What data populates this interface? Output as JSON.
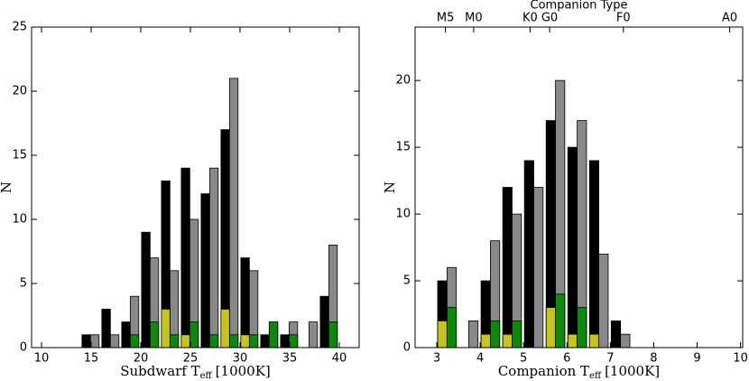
{
  "chart_data": [
    {
      "type": "histogram",
      "xlabel": {
        "main": "Subdwarf T",
        "sub": "eff",
        "unit": "[1000K]"
      },
      "ylabel": "N",
      "bins": [
        14,
        16,
        18,
        20,
        22,
        24,
        26,
        28,
        30,
        32,
        34,
        36,
        38,
        40
      ],
      "series": [
        {
          "color": "#000000",
          "values": [
            1,
            3,
            2,
            9,
            13,
            14,
            12,
            17,
            7,
            1,
            1,
            0,
            4
          ]
        },
        {
          "color": "#888888",
          "values": [
            1,
            1,
            4,
            7,
            6,
            10,
            14,
            21,
            6,
            2,
            2,
            2,
            8
          ]
        },
        {
          "color": "#c8c41e",
          "values": [
            0,
            0,
            0,
            0,
            3,
            1,
            0,
            3,
            1,
            0,
            0,
            0,
            0
          ]
        },
        {
          "color": "#0e870e",
          "values": [
            0,
            0,
            1,
            2,
            1,
            2,
            1,
            1,
            1,
            2,
            1,
            0,
            2
          ]
        }
      ],
      "xlim": [
        9,
        42
      ],
      "xticks": [
        10,
        15,
        20,
        25,
        30,
        35,
        40
      ],
      "ylim": [
        0,
        25
      ],
      "yticks": [
        0,
        5,
        10,
        15,
        20,
        25
      ]
    },
    {
      "type": "histogram",
      "xlabel": {
        "main": "Companion T",
        "sub": "eff",
        "unit": "[1000K]"
      },
      "ylabel": "N",
      "top_axis_label": "Companion Type",
      "top_ticks": [
        {
          "value": 3.2,
          "label": "M5"
        },
        {
          "value": 3.85,
          "label": "M0"
        },
        {
          "value": 5.15,
          "label": "K0"
        },
        {
          "value": 5.6,
          "label": "G0"
        },
        {
          "value": 7.3,
          "label": "F0"
        },
        {
          "value": 9.75,
          "label": "A0"
        }
      ],
      "bins": [
        3.0,
        3.5,
        4.0,
        4.5,
        5.0,
        5.5,
        6.0,
        6.5,
        7.0,
        7.5
      ],
      "series": [
        {
          "color": "#000000",
          "values": [
            5,
            0,
            5,
            12,
            14,
            17,
            15,
            14,
            2
          ]
        },
        {
          "color": "#888888",
          "values": [
            6,
            2,
            8,
            10,
            12,
            20,
            17,
            7,
            1
          ]
        },
        {
          "color": "#c8c41e",
          "values": [
            2,
            0,
            1,
            1,
            0,
            3,
            1,
            1,
            0
          ]
        },
        {
          "color": "#0e870e",
          "values": [
            3,
            0,
            2,
            2,
            0,
            4,
            3,
            0,
            0
          ]
        }
      ],
      "xlim": [
        2.5,
        10.05
      ],
      "xticks": [
        3,
        4,
        5,
        6,
        7,
        8,
        9,
        10
      ],
      "ylim": [
        0,
        24
      ],
      "yticks": [
        0,
        5,
        10,
        15,
        20
      ]
    }
  ]
}
